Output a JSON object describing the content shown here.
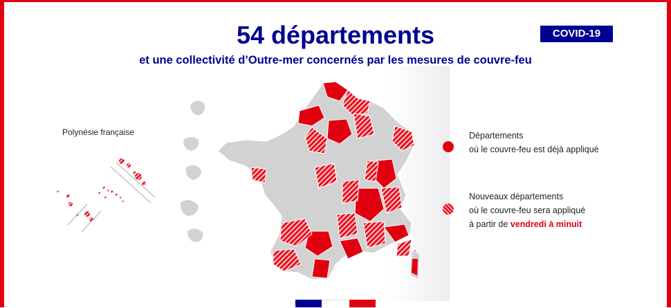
{
  "header": {
    "title": "54 départements",
    "subtitle": "et une collectivité d’Outre-mer concernés par les mesures de couvre-feu",
    "badge": "COVID-19"
  },
  "inset": {
    "label": "Polynésie française"
  },
  "legend": {
    "item1": {
      "line1": "Départements",
      "line2": "où le couvre-feu est déjà appliqué"
    },
    "item2": {
      "line1": "Nouveaux départements",
      "line2": "où le couvre-feu sera appliqué",
      "line3_prefix": "à partir de ",
      "line3_highlight": "vendredi à minuit"
    }
  },
  "colors": {
    "navy": "#000091",
    "red": "#e1000f",
    "grey": "#d2d2d2"
  }
}
